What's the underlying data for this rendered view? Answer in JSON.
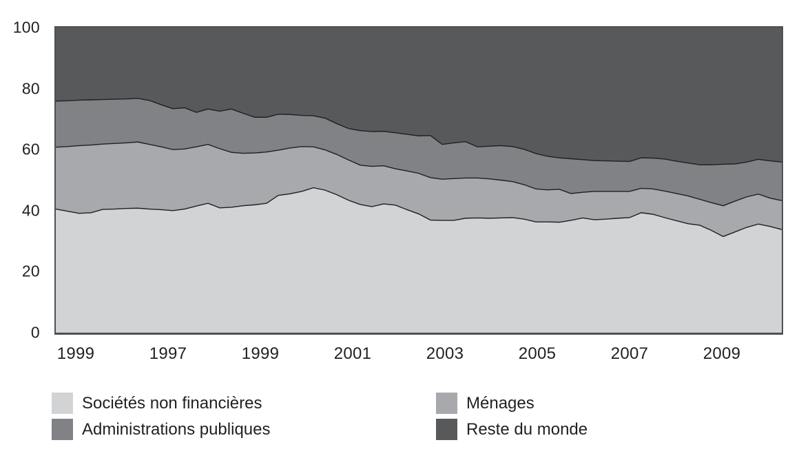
{
  "chart_data": {
    "type": "area",
    "stacked": true,
    "title": "",
    "xlabel": "",
    "ylabel": "",
    "ylim": [
      0,
      100
    ],
    "yticks": [
      0,
      20,
      40,
      60,
      80,
      100
    ],
    "x_tick_labels": [
      "1999",
      "1997",
      "1999",
      "2001",
      "2003",
      "2005",
      "2007",
      "2009"
    ],
    "x_unit": "quarterly samples, one point per quarter across the axis span",
    "grid": false,
    "legend_position": "below-chart, two columns",
    "boundary_line_color": "#1f1f1f",
    "plot_border_color": "#4d4f51",
    "background_color": "#ffffff",
    "series": [
      {
        "key": "societes-non-financieres",
        "name": "Sociétés non financières",
        "color": "#d1d3d4",
        "values": [
          40.5,
          39.8,
          39.1,
          39.3,
          40.4,
          40.5,
          40.7,
          40.8,
          40.5,
          40.3,
          40.0,
          40.5,
          41.5,
          42.4,
          40.9,
          41.1,
          41.6,
          41.9,
          42.4,
          45.0,
          45.5,
          46.3,
          47.5,
          46.7,
          45.2,
          43.4,
          42.0,
          41.3,
          42.2,
          41.8,
          40.3,
          38.9,
          36.9,
          36.8,
          36.8,
          37.5,
          37.6,
          37.5,
          37.6,
          37.7,
          37.2,
          36.3,
          36.3,
          36.2,
          36.8,
          37.6,
          37.0,
          37.2,
          37.5,
          37.7,
          39.3,
          38.8,
          37.7,
          36.7,
          35.7,
          35.2,
          33.5,
          31.5,
          33.0,
          34.5,
          35.6,
          34.8,
          33.8
        ]
      },
      {
        "key": "menages",
        "name": "Ménages",
        "color": "#a7a9ac",
        "values": [
          20.3,
          21.2,
          22.2,
          22.2,
          21.4,
          21.5,
          21.5,
          21.7,
          21.2,
          20.6,
          20.0,
          19.7,
          19.4,
          19.3,
          19.4,
          18.0,
          17.2,
          17.0,
          16.8,
          14.8,
          15.0,
          14.7,
          13.4,
          13.2,
          13.2,
          13.2,
          12.9,
          13.2,
          12.5,
          11.9,
          12.7,
          13.3,
          13.9,
          13.5,
          13.7,
          13.2,
          13.1,
          12.9,
          12.4,
          11.8,
          11.3,
          10.8,
          10.5,
          10.8,
          8.8,
          8.4,
          9.3,
          9.1,
          8.8,
          8.6,
          8.0,
          8.3,
          8.7,
          8.9,
          9.1,
          8.5,
          9.1,
          10.1,
          10.1,
          10.0,
          9.8,
          9.3,
          9.5
        ]
      },
      {
        "key": "administrations-publiques",
        "name": "Administrations publiques",
        "color": "#808285",
        "values": [
          15.1,
          15.0,
          14.9,
          14.8,
          14.6,
          14.5,
          14.4,
          14.3,
          14.4,
          13.8,
          13.4,
          13.5,
          11.3,
          11.6,
          12.3,
          14.2,
          13.1,
          11.7,
          11.4,
          11.8,
          11.0,
          10.2,
          10.2,
          10.4,
          10.1,
          10.3,
          11.3,
          11.4,
          11.3,
          11.8,
          12.0,
          12.3,
          13.8,
          11.4,
          11.7,
          11.9,
          10.2,
          10.7,
          11.3,
          11.5,
          11.6,
          11.6,
          11.0,
          10.3,
          11.4,
          10.7,
          10.1,
          10.0,
          9.9,
          9.8,
          10.0,
          10.1,
          10.5,
          10.6,
          10.8,
          11.3,
          12.4,
          13.6,
          12.2,
          11.4,
          11.4,
          12.2,
          12.6
        ]
      },
      {
        "key": "reste-du-monde",
        "name": "Reste du monde",
        "color": "#58595b",
        "values": [
          24.1,
          24.0,
          23.8,
          23.7,
          23.6,
          23.5,
          23.4,
          23.2,
          23.9,
          25.3,
          26.6,
          26.3,
          27.8,
          26.7,
          27.4,
          26.7,
          28.1,
          29.4,
          29.4,
          28.4,
          28.5,
          28.8,
          28.9,
          29.7,
          31.5,
          33.1,
          33.8,
          34.1,
          34.0,
          34.5,
          35.0,
          35.5,
          35.4,
          38.3,
          37.8,
          37.4,
          39.1,
          38.9,
          38.7,
          39.0,
          39.9,
          41.3,
          42.2,
          42.7,
          43.0,
          43.3,
          43.6,
          43.7,
          43.8,
          43.9,
          42.7,
          42.8,
          43.1,
          43.8,
          44.4,
          45.0,
          45.0,
          44.8,
          44.7,
          44.1,
          43.2,
          43.7,
          44.1
        ]
      }
    ]
  }
}
